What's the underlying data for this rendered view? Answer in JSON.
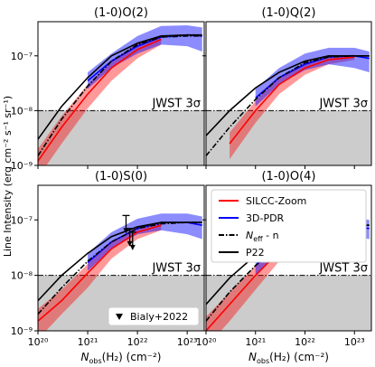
{
  "ylabel": "Line Intensity (erg cm⁻² s⁻¹ sr⁻¹)",
  "xlabel": [
    {
      "text": "N",
      "style": "italic"
    },
    {
      "text": "obs",
      "style": "sub"
    },
    {
      "text": "(H₂) (cm⁻²)"
    }
  ],
  "chart_data": [
    {
      "type": "line",
      "title": "(1-0)O(2)",
      "log_x": true,
      "log_y": true,
      "xlim": [
        1e+20,
        2.2e+23
      ],
      "ylim": [
        1e-09,
        4.2e-07
      ],
      "xticks": [
        {
          "value": 1e+20,
          "label": "10²⁰"
        },
        {
          "value": 1e+21,
          "label": "10²¹"
        },
        {
          "value": 1e+22,
          "label": "10²²"
        },
        {
          "value": 1e+23,
          "label": "10²³"
        }
      ],
      "yticks": [
        {
          "value": 1e-09,
          "label": "10⁻⁹"
        },
        {
          "value": 1e-08,
          "label": "10⁻⁸"
        },
        {
          "value": 1e-07,
          "label": "10⁻⁷"
        }
      ],
      "threshold": 1e-08,
      "threshold_label": "JWST 3σ",
      "threshold_color": "#cccccc",
      "x": [
        1e+20,
        3e+20,
        1e+21,
        3e+21,
        1e+22,
        3e+22,
        1e+23,
        2e+23
      ],
      "series": [
        {
          "color": "#ff0000",
          "style": "solid",
          "values": [
            1.2e-09,
            5e-09,
            2e-08,
            6e-08,
            1.3e-07,
            2e-07,
            null,
            null
          ],
          "band_lower": [
            6e-10,
            2.5e-09,
            1.1e-08,
            3.5e-08,
            9e-08,
            1.6e-07,
            null,
            null
          ],
          "band_upper": [
            2e-09,
            8e-09,
            3e-08,
            8e-08,
            1.7e-07,
            2.4e-07,
            null,
            null
          ]
        },
        {
          "color": "#0000ff",
          "style": "solid",
          "values": [
            null,
            null,
            3.5e-08,
            8e-08,
            1.5e-07,
            2.2e-07,
            2.4e-07,
            2.3e-07
          ],
          "band_lower": [
            null,
            null,
            2.5e-08,
            6e-08,
            1.1e-07,
            1.6e-07,
            1.5e-07,
            1.2e-07
          ],
          "band_upper": [
            null,
            null,
            5e-08,
            1.1e-07,
            2.3e-07,
            3.5e-07,
            3.6e-07,
            3.3e-07
          ]
        },
        {
          "color": "#000000",
          "style": "dashdot",
          "values": [
            1.5e-09,
            7e-09,
            2.8e-08,
            8e-08,
            1.6e-07,
            2.2e-07,
            2.3e-07,
            2.3e-07
          ]
        },
        {
          "color": "#000000",
          "style": "solid",
          "values": [
            3e-09,
            1.2e-08,
            4e-08,
            1e-07,
            1.7e-07,
            2.3e-07,
            2.4e-07,
            2.4e-07
          ]
        }
      ]
    },
    {
      "type": "line",
      "title": "(1-0)Q(2)",
      "log_x": true,
      "log_y": true,
      "xlim": [
        1e+20,
        2.2e+23
      ],
      "ylim": [
        1e-09,
        4.2e-07
      ],
      "xticks": [
        {
          "value": 1e+20,
          "label": "10²⁰"
        },
        {
          "value": 1e+21,
          "label": "10²¹"
        },
        {
          "value": 1e+22,
          "label": "10²²"
        },
        {
          "value": 1e+23,
          "label": "10²³"
        }
      ],
      "yticks": [
        {
          "value": 1e-09,
          "label": "10⁻⁹"
        },
        {
          "value": 1e-08,
          "label": "10⁻⁸"
        },
        {
          "value": 1e-07,
          "label": "10⁻⁷"
        }
      ],
      "threshold": 1e-08,
      "threshold_label": "JWST 3σ",
      "threshold_color": "#cccccc",
      "x": [
        1e+20,
        3e+20,
        1e+21,
        3e+21,
        1e+22,
        3e+22,
        1e+23,
        2e+23
      ],
      "series": [
        {
          "color": "#ff0000",
          "style": "solid",
          "values": [
            null,
            2.5e-09,
            1e-08,
            3e-08,
            6e-08,
            8.5e-08,
            9.5e-08,
            null
          ],
          "band_lower": [
            null,
            1.3e-09,
            6e-09,
            2e-08,
            4.5e-08,
            7e-08,
            8.5e-08,
            null
          ],
          "band_upper": [
            null,
            4e-09,
            1.5e-08,
            4e-08,
            7.5e-08,
            1e-07,
            1.05e-07,
            null
          ]
        },
        {
          "color": "#0000ff",
          "style": "solid",
          "values": [
            null,
            null,
            1.7e-08,
            4e-08,
            7e-08,
            9.5e-08,
            1e-07,
            9e-08
          ],
          "band_lower": [
            null,
            null,
            1.2e-08,
            3e-08,
            5.5e-08,
            7e-08,
            6e-08,
            5e-08
          ],
          "band_upper": [
            null,
            null,
            2.5e-08,
            6e-08,
            1.1e-07,
            1.4e-07,
            1.4e-07,
            1.2e-07
          ]
        },
        {
          "color": "#000000",
          "style": "dashdot",
          "values": [
            1.5e-09,
            5e-09,
            1.6e-08,
            4e-08,
            7.5e-08,
            9.5e-08,
            1e-07,
            1e-07
          ]
        },
        {
          "color": "#000000",
          "style": "solid",
          "values": [
            3.5e-09,
            1e-08,
            2.6e-08,
            5e-08,
            8e-08,
            1e-07,
            1e-07,
            1e-07
          ]
        }
      ]
    },
    {
      "type": "line",
      "title": "(1-0)S(0)",
      "log_x": true,
      "log_y": true,
      "xlim": [
        1e+20,
        2.2e+23
      ],
      "ylim": [
        1e-09,
        4.2e-07
      ],
      "xticks": [
        {
          "value": 1e+20,
          "label": "10²⁰"
        },
        {
          "value": 1e+21,
          "label": "10²¹"
        },
        {
          "value": 1e+22,
          "label": "10²²"
        },
        {
          "value": 1e+23,
          "label": "10²³"
        }
      ],
      "yticks": [
        {
          "value": 1e-09,
          "label": "10⁻⁹"
        },
        {
          "value": 1e-08,
          "label": "10⁻⁸"
        },
        {
          "value": 1e-07,
          "label": "10⁻⁷"
        }
      ],
      "threshold": 1e-08,
      "threshold_label": "JWST 3σ",
      "threshold_color": "#cccccc",
      "x": [
        1e+20,
        3e+20,
        1e+21,
        3e+21,
        1e+22,
        3e+22,
        1e+23,
        2e+23
      ],
      "series": [
        {
          "color": "#ff0000",
          "style": "solid",
          "values": [
            1.5e-09,
            3.5e-09,
            1.1e-08,
            3e-08,
            6e-08,
            8e-08,
            null,
            null
          ],
          "band_lower": [
            7e-10,
            2e-09,
            6e-09,
            2e-08,
            4.5e-08,
            6.5e-08,
            null,
            null
          ],
          "band_upper": [
            2.5e-09,
            5.5e-09,
            1.6e-08,
            4e-08,
            7.5e-08,
            9e-08,
            null,
            null
          ]
        },
        {
          "color": "#0000ff",
          "style": "solid",
          "values": [
            null,
            null,
            1.7e-08,
            4e-08,
            7e-08,
            9e-08,
            9e-08,
            8e-08
          ],
          "band_lower": [
            null,
            null,
            1.2e-08,
            3e-08,
            5.5e-08,
            6.5e-08,
            5.5e-08,
            4.5e-08
          ],
          "band_upper": [
            null,
            null,
            2.5e-08,
            6e-08,
            1.05e-07,
            1.3e-07,
            1.3e-07,
            1.15e-07
          ]
        },
        {
          "color": "#000000",
          "style": "dashdot",
          "values": [
            2e-09,
            6e-09,
            1.8e-08,
            4e-08,
            7e-08,
            8.5e-08,
            9e-08,
            9e-08
          ]
        },
        {
          "color": "#000000",
          "style": "solid",
          "values": [
            3.5e-09,
            1e-08,
            2.5e-08,
            5e-08,
            7.5e-08,
            9e-08,
            9e-08,
            9e-08
          ]
        }
      ],
      "points": {
        "name": "Bialy+2022",
        "color": "#000000",
        "marker": "upper-limit",
        "x": [
          5.9e+21,
          7e+21,
          8e+21
        ],
        "values": [
          1.2e-07,
          7e-08,
          6e-08
        ]
      }
    },
    {
      "type": "line",
      "title": "(1-0)O(4)",
      "log_x": true,
      "log_y": true,
      "xlim": [
        1e+20,
        2.2e+23
      ],
      "ylim": [
        1e-09,
        4.2e-07
      ],
      "xticks": [
        {
          "value": 1e+20,
          "label": "10²⁰"
        },
        {
          "value": 1e+21,
          "label": "10²¹"
        },
        {
          "value": 1e+22,
          "label": "10²²"
        },
        {
          "value": 1e+23,
          "label": "10²³"
        }
      ],
      "yticks": [
        {
          "value": 1e-09,
          "label": "10⁻⁹"
        },
        {
          "value": 1e-08,
          "label": "10⁻⁸"
        },
        {
          "value": 1e-07,
          "label": "10⁻⁷"
        }
      ],
      "threshold": 1e-08,
      "threshold_label": "JWST 3σ",
      "threshold_color": "#cccccc",
      "x": [
        1e+20,
        3e+20,
        1e+21,
        3e+21,
        1e+22,
        3e+22,
        1e+23,
        2e+23
      ],
      "legend": "upper right",
      "series": [
        {
          "name": "SILCC-Zoom",
          "color": "#ff0000",
          "style": "solid",
          "values": [
            1e-09,
            3e-09,
            1e-08,
            2.7e-08,
            5.3e-08,
            7e-08,
            7.8e-08,
            null
          ],
          "band_lower": [
            5e-10,
            1.5e-09,
            5.5e-09,
            1.8e-08,
            4e-08,
            6e-08,
            7e-08,
            null
          ],
          "band_upper": [
            1.8e-09,
            5e-09,
            1.5e-08,
            3.6e-08,
            6.5e-08,
            8e-08,
            8.5e-08,
            null
          ]
        },
        {
          "name": "3D-PDR",
          "color": "#0000ff",
          "style": "solid",
          "values": [
            null,
            null,
            1.5e-08,
            3.5e-08,
            6e-08,
            7.5e-08,
            7.5e-08,
            7e-08
          ],
          "band_lower": [
            null,
            null,
            1e-08,
            2.5e-08,
            4.5e-08,
            5.5e-08,
            5e-08,
            4.5e-08
          ],
          "band_upper": [
            null,
            null,
            2.2e-08,
            5e-08,
            9e-08,
            1.15e-07,
            1.1e-07,
            1e-07
          ]
        },
        {
          "name_parts": [
            {
              "text": "N",
              "style": "italic"
            },
            {
              "text": "eff",
              "style": "sub"
            },
            {
              "text": " - n"
            }
          ],
          "color": "#000000",
          "style": "dashdot",
          "values": [
            1.5e-09,
            5e-09,
            1.5e-08,
            3.5e-08,
            6e-08,
            7.5e-08,
            8e-08,
            8e-08
          ]
        },
        {
          "name": "P22",
          "color": "#000000",
          "style": "solid",
          "values": [
            3e-09,
            9e-09,
            2.3e-08,
            4.5e-08,
            6.5e-08,
            7.8e-08,
            8e-08,
            8e-08
          ]
        }
      ]
    }
  ]
}
